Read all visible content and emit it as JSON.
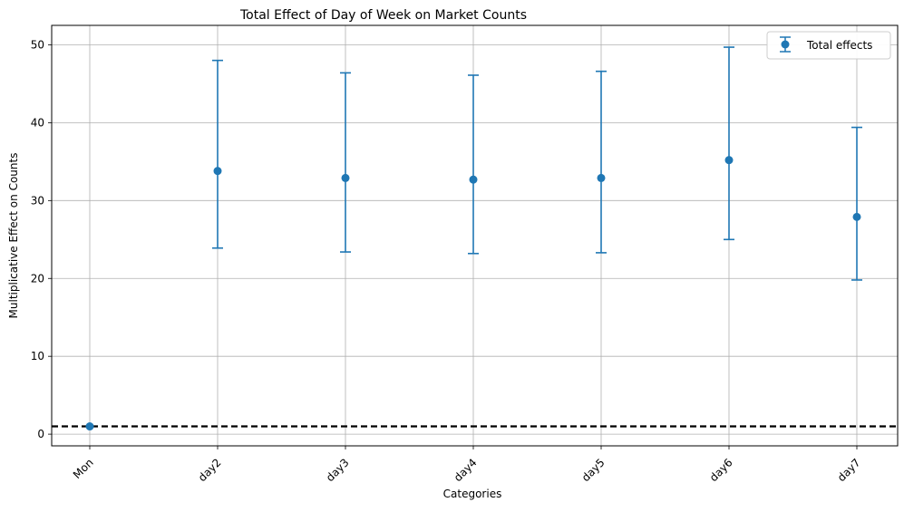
{
  "chart_data": {
    "type": "scatter",
    "title": "Total Effect of Day of Week on Market Counts",
    "xlabel": "Categories",
    "ylabel": "Multiplicative Effect on Counts",
    "categories": [
      "Mon",
      "day2",
      "day3",
      "day4",
      "day5",
      "day6",
      "day7"
    ],
    "series": [
      {
        "name": "Total effects",
        "values": [
          1.0,
          33.8,
          32.9,
          32.7,
          32.9,
          35.2,
          27.9
        ],
        "lower": [
          1.0,
          23.9,
          23.4,
          23.2,
          23.3,
          25.0,
          19.8
        ],
        "upper": [
          1.0,
          48.0,
          46.4,
          46.1,
          46.6,
          49.7,
          39.4
        ]
      }
    ],
    "reference_line": {
      "y": 1,
      "style": "dashed",
      "color": "#000000"
    },
    "ylim": [
      -1.5,
      52.5
    ],
    "yticks": [
      0,
      10,
      20,
      30,
      40,
      50
    ],
    "grid": true,
    "legend_position": "top-right",
    "xtick_rotation": 45,
    "colors": {
      "series": "#1f77b4",
      "grid": "#b0b0b0",
      "reference": "#000000"
    }
  }
}
